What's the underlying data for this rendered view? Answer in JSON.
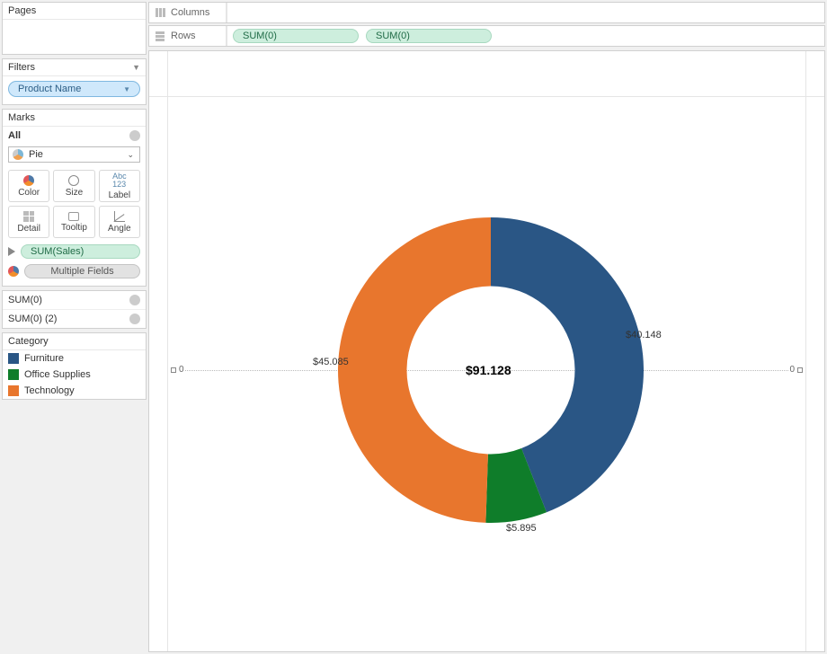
{
  "pages": {
    "title": "Pages"
  },
  "filters": {
    "title": "Filters",
    "items": [
      {
        "label": "Product Name"
      }
    ]
  },
  "marks": {
    "title": "Marks",
    "all_label": "All",
    "type_label": "Pie",
    "cards": {
      "color": "Color",
      "size": "Size",
      "label": "Label",
      "detail": "Detail",
      "tooltip": "Tooltip",
      "angle": "Angle"
    },
    "shelves": [
      {
        "kind": "label",
        "text": "SUM(Sales)"
      },
      {
        "kind": "color",
        "text": "Multiple Fields"
      }
    ]
  },
  "sum_panels": [
    {
      "label": "SUM(0)"
    },
    {
      "label": "SUM(0) (2)"
    }
  ],
  "legend": {
    "title": "Category",
    "items": [
      {
        "label": "Furniture",
        "color": "#2a5685"
      },
      {
        "label": "Office Supplies",
        "color": "#0f7d2a"
      },
      {
        "label": "Technology",
        "color": "#e8762d"
      }
    ]
  },
  "columns_shelf": {
    "label": "Columns",
    "pills": []
  },
  "rows_shelf": {
    "label": "Rows",
    "pills": [
      "SUM(0)",
      "SUM(0)"
    ]
  },
  "chart": {
    "type": "donut",
    "center_total": "$91.128",
    "center_total_fontsize": 14,
    "background_color": "#ffffff",
    "inner_radius_ratio": 0.55,
    "slices": [
      {
        "name": "Furniture",
        "label": "$40.148",
        "value": 40.148,
        "color": "#2a5685"
      },
      {
        "name": "Office Supplies",
        "label": "$5.895",
        "value": 5.895,
        "color": "#0f7d2a"
      },
      {
        "name": "Technology",
        "label": "$45.085",
        "value": 45.085,
        "color": "#e8762d"
      }
    ],
    "axis_markers": {
      "left": "0",
      "right": "0"
    },
    "axis_line_color": "#bbbbbb",
    "label_fontsize": 11
  }
}
